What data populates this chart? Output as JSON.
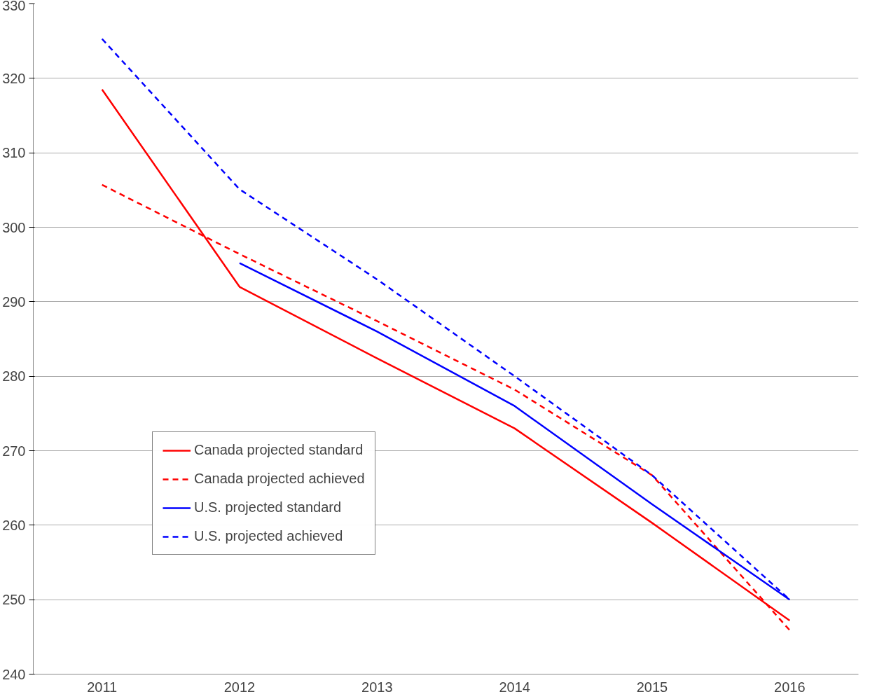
{
  "chart_data": {
    "type": "line",
    "categories": [
      "2011",
      "2012",
      "2013",
      "2014",
      "2015",
      "2016"
    ],
    "series": [
      {
        "name": "Canada projected standard",
        "color": "#ff0000",
        "line_style": "solid",
        "values": [
          318.5,
          292,
          282.4,
          273,
          260.3,
          247.2
        ]
      },
      {
        "name": "Canada projected achieved",
        "color": "#ff0000",
        "line_style": "dashed",
        "values": [
          305.7,
          296.4,
          287.4,
          278.2,
          266.7,
          245.9
        ]
      },
      {
        "name": "U.S. projected standard",
        "color": "#0000ff",
        "line_style": "solid",
        "values": [
          null,
          295.2,
          286,
          276,
          262.8,
          250
        ]
      },
      {
        "name": "U.S. projected achieved",
        "color": "#0000ff",
        "line_style": "dashed",
        "values": [
          325.3,
          305.1,
          293,
          280,
          266.7,
          250
        ]
      }
    ],
    "ylim": [
      240,
      330
    ],
    "yticks": [
      240,
      250,
      260,
      270,
      280,
      290,
      300,
      310,
      320,
      330
    ],
    "grid": "y",
    "legend": "bottom left",
    "marker": "none"
  }
}
